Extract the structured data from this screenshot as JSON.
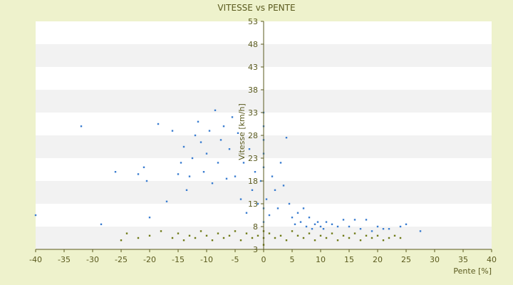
{
  "chart_data": {
    "type": "scatter",
    "title": "VITESSE vs PENTE",
    "xlabel": "Pente [%]",
    "ylabel": "Vitesse [km/h]",
    "xlim": [
      -40,
      40
    ],
    "ylim": [
      3,
      53
    ],
    "xticks": [
      "-40",
      "-35",
      "-30",
      "-25",
      "-20",
      "-15",
      "-10",
      "-5",
      "0",
      "5",
      "10",
      "15",
      "20",
      "25",
      "30",
      "35",
      "40"
    ],
    "yticks": [
      "3",
      "8",
      "13",
      "18",
      "23",
      "28",
      "33",
      "38",
      "43",
      "48",
      "53"
    ],
    "grid": "alternating horizontal bands",
    "legend": "none",
    "colors": {
      "background": "#eef2cc",
      "band_light": "#ffffff",
      "band_dark": "#f2f2f2",
      "axis": "#5a5a1e",
      "series_blue": "#3a7dd0",
      "series_olive": "#6e7a16"
    },
    "series": [
      {
        "color": "#3a7dd0",
        "points": [
          [
            -40,
            10.5
          ],
          [
            -32,
            30
          ],
          [
            -28.5,
            8.5
          ],
          [
            -26,
            20
          ],
          [
            -22,
            19.5
          ],
          [
            -21,
            21
          ],
          [
            -20.5,
            18
          ],
          [
            -20,
            10
          ],
          [
            -18.5,
            30.5
          ],
          [
            -17,
            13.5
          ],
          [
            -16,
            29
          ],
          [
            -15,
            19.5
          ],
          [
            -14.5,
            22
          ],
          [
            -14,
            25.5
          ],
          [
            -13.5,
            16
          ],
          [
            -13,
            19
          ],
          [
            -12.5,
            23
          ],
          [
            -12,
            28
          ],
          [
            -11.5,
            31
          ],
          [
            -11,
            26.5
          ],
          [
            -10.5,
            20
          ],
          [
            -10,
            24
          ],
          [
            -9.5,
            29
          ],
          [
            -9,
            17.5
          ],
          [
            -8.5,
            33.5
          ],
          [
            -8,
            22
          ],
          [
            -7.5,
            27
          ],
          [
            -7,
            30
          ],
          [
            -6.5,
            18.5
          ],
          [
            -6,
            25
          ],
          [
            -5.5,
            32
          ],
          [
            -5,
            19
          ],
          [
            -4.5,
            28.5
          ],
          [
            -4,
            14
          ],
          [
            -3.5,
            22
          ],
          [
            -3,
            11
          ],
          [
            -2.5,
            25
          ],
          [
            -2,
            16
          ],
          [
            -1.5,
            20
          ],
          [
            -1,
            13
          ],
          [
            -0.5,
            18
          ],
          [
            0,
            21
          ],
          [
            0,
            24
          ],
          [
            0,
            27
          ],
          [
            0,
            30
          ],
          [
            0,
            33
          ],
          [
            0,
            12
          ],
          [
            0,
            9
          ],
          [
            0.5,
            14
          ],
          [
            1,
            10.5
          ],
          [
            1.5,
            19
          ],
          [
            2,
            16
          ],
          [
            2.5,
            12
          ],
          [
            3,
            22
          ],
          [
            3.5,
            17
          ],
          [
            4,
            27.5
          ],
          [
            4.5,
            13
          ],
          [
            5,
            10
          ],
          [
            5.5,
            8.5
          ],
          [
            6,
            11
          ],
          [
            6.5,
            9
          ],
          [
            7,
            12
          ],
          [
            7.5,
            8
          ],
          [
            8,
            10
          ],
          [
            8.5,
            7.5
          ],
          [
            9,
            8.5
          ],
          [
            9.5,
            9
          ],
          [
            10,
            8
          ],
          [
            10.5,
            7.5
          ],
          [
            11,
            9
          ],
          [
            12,
            8.5
          ],
          [
            13,
            8
          ],
          [
            14,
            9.5
          ],
          [
            15,
            8
          ],
          [
            16,
            9.5
          ],
          [
            17,
            7.5
          ],
          [
            18,
            9.5
          ],
          [
            19,
            7
          ],
          [
            20,
            8
          ],
          [
            21,
            7.5
          ],
          [
            22,
            7.5
          ],
          [
            24,
            8
          ],
          [
            25,
            8.5
          ],
          [
            27.5,
            7
          ]
        ]
      },
      {
        "color": "#6e7a16",
        "points": [
          [
            -25,
            5
          ],
          [
            -24,
            6.5
          ],
          [
            -22,
            5.5
          ],
          [
            -20,
            6
          ],
          [
            -18,
            7
          ],
          [
            -16,
            5.5
          ],
          [
            -15,
            6.5
          ],
          [
            -14,
            5
          ],
          [
            -13,
            6
          ],
          [
            -12,
            5.5
          ],
          [
            -11,
            7
          ],
          [
            -10,
            6
          ],
          [
            -9,
            5
          ],
          [
            -8,
            6.5
          ],
          [
            -7,
            5.5
          ],
          [
            -6,
            6
          ],
          [
            -5,
            7
          ],
          [
            -4,
            5
          ],
          [
            -3,
            6.5
          ],
          [
            -2,
            5.5
          ],
          [
            -1,
            6
          ],
          [
            0,
            4
          ],
          [
            0,
            5.5
          ],
          [
            0,
            7
          ],
          [
            1,
            6.5
          ],
          [
            2,
            5.5
          ],
          [
            3,
            6
          ],
          [
            4,
            5
          ],
          [
            5,
            7
          ],
          [
            6,
            6
          ],
          [
            7,
            5.5
          ],
          [
            8,
            6.5
          ],
          [
            9,
            5
          ],
          [
            10,
            6
          ],
          [
            11,
            5.5
          ],
          [
            12,
            6.5
          ],
          [
            13,
            5
          ],
          [
            14,
            6
          ],
          [
            15,
            5.5
          ],
          [
            16,
            6.5
          ],
          [
            17,
            5
          ],
          [
            18,
            6
          ],
          [
            19,
            5.5
          ],
          [
            20,
            6
          ],
          [
            21,
            5
          ],
          [
            22,
            5.5
          ],
          [
            23,
            6
          ],
          [
            24,
            5.5
          ]
        ]
      }
    ]
  }
}
